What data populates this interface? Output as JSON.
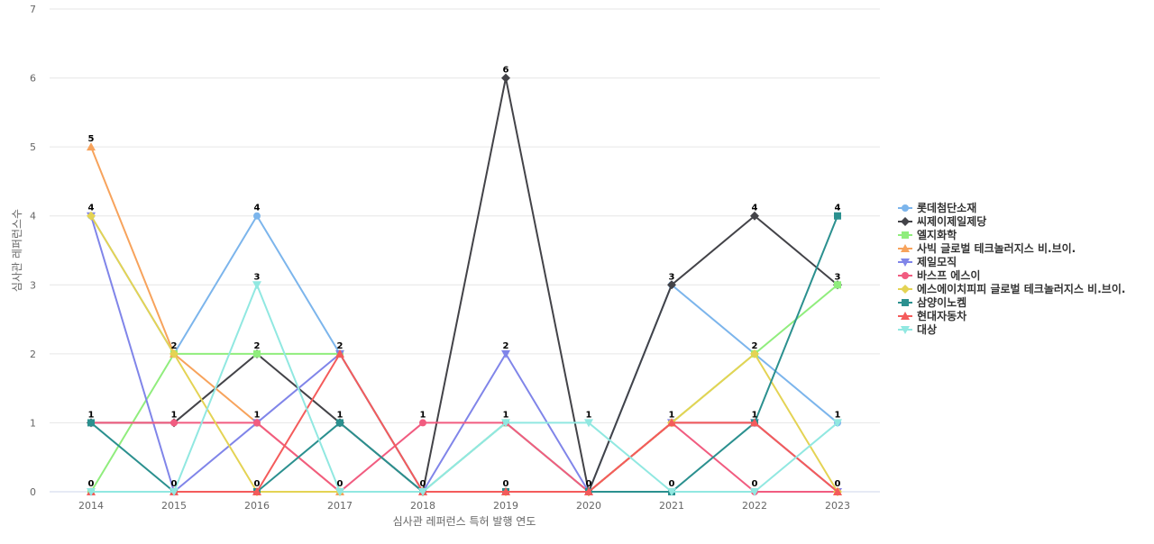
{
  "chart_data": {
    "type": "line",
    "xlabel": "심사관 레퍼런스 특허 발행 연도",
    "ylabel": "심사관 레퍼런스수",
    "ylim": [
      0,
      7
    ],
    "y_ticks": [
      "0",
      "1",
      "2",
      "3",
      "4",
      "5",
      "6",
      "7"
    ],
    "grid": true,
    "legend_position": "right",
    "categories": [
      "2014",
      "2015",
      "2016",
      "2017",
      "2018",
      "2019",
      "2020",
      "2021",
      "2022",
      "2023"
    ],
    "series": [
      {
        "name": "롯데첨단소재",
        "color": "#7cb5ec",
        "marker": "circle",
        "values": [
          4,
          2,
          4,
          2,
          0,
          1,
          0,
          3,
          2,
          1
        ]
      },
      {
        "name": "씨제이제일제당",
        "color": "#434348",
        "marker": "diamond",
        "values": [
          1,
          1,
          2,
          1,
          0,
          6,
          0,
          3,
          4,
          3
        ]
      },
      {
        "name": "엘지화학",
        "color": "#90ed7d",
        "marker": "square",
        "values": [
          0,
          2,
          2,
          2,
          0,
          1,
          0,
          1,
          2,
          3
        ]
      },
      {
        "name": "사빅 글로벌 테크놀러지스 비.브이.",
        "color": "#f7a35c",
        "marker": "triangle",
        "values": [
          5,
          2,
          1,
          0,
          0,
          0,
          0,
          1,
          1,
          0
        ]
      },
      {
        "name": "제일모직",
        "color": "#8085e9",
        "marker": "triangle-down",
        "values": [
          4,
          0,
          1,
          2,
          0,
          2,
          0,
          1,
          1,
          0
        ]
      },
      {
        "name": "바스프 에스이",
        "color": "#f15c80",
        "marker": "circle",
        "values": [
          1,
          1,
          1,
          0,
          1,
          1,
          0,
          1,
          0,
          0
        ]
      },
      {
        "name": "에스에이치피피 글로벌 테크놀러지스 비.브이.",
        "color": "#e4d354",
        "marker": "diamond",
        "values": [
          4,
          2,
          0,
          0,
          0,
          0,
          0,
          1,
          2,
          0
        ]
      },
      {
        "name": "삼양이노켐",
        "color": "#2b908f",
        "marker": "square",
        "values": [
          1,
          0,
          0,
          1,
          0,
          0,
          0,
          0,
          1,
          4
        ]
      },
      {
        "name": "현대자동차",
        "color": "#f45b5b",
        "marker": "triangle",
        "values": [
          0,
          0,
          0,
          2,
          0,
          0,
          0,
          1,
          1,
          0
        ]
      },
      {
        "name": "대상",
        "color": "#91e8e1",
        "marker": "triangle-down",
        "values": [
          0,
          0,
          3,
          0,
          0,
          1,
          1,
          0,
          0,
          1
        ]
      }
    ],
    "data_labels": [
      {
        "x": "2014",
        "values": [
          "5",
          "4",
          "1",
          "0"
        ]
      },
      {
        "x": "2015",
        "values": [
          "2",
          "1",
          "0"
        ]
      },
      {
        "x": "2016",
        "values": [
          "4",
          "3",
          "2",
          "1",
          "0"
        ]
      },
      {
        "x": "2017",
        "values": [
          "2",
          "1",
          "0"
        ]
      },
      {
        "x": "2018",
        "values": [
          "1",
          "0"
        ]
      },
      {
        "x": "2019",
        "values": [
          "6",
          "2",
          "1",
          "0"
        ]
      },
      {
        "x": "2020",
        "values": [
          "1",
          "0"
        ]
      },
      {
        "x": "2021",
        "values": [
          "3",
          "1",
          "0"
        ]
      },
      {
        "x": "2022",
        "values": [
          "4",
          "2",
          "1",
          "0"
        ]
      },
      {
        "x": "2023",
        "values": [
          "4",
          "3",
          "1",
          "0"
        ]
      }
    ]
  }
}
